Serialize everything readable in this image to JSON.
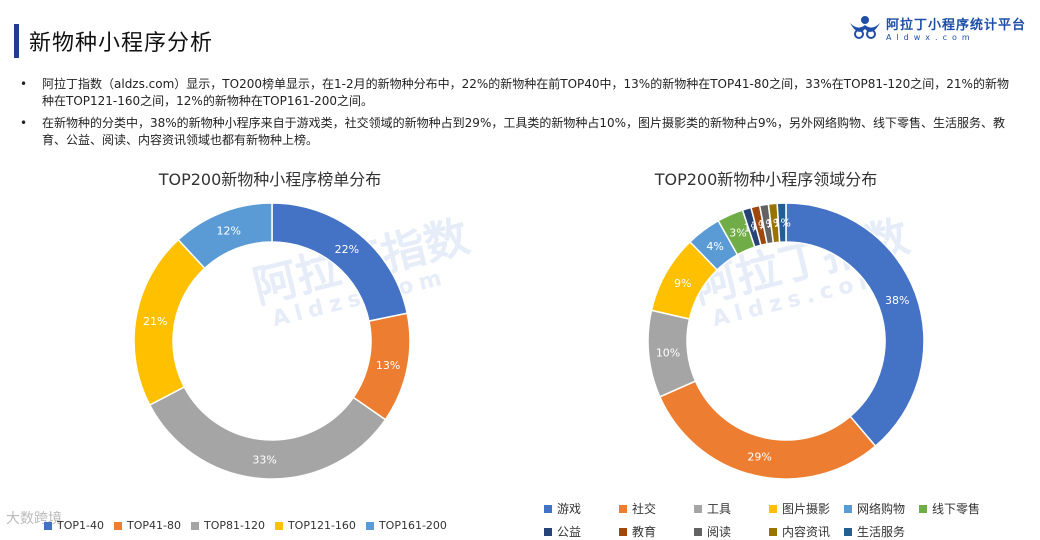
{
  "header": {
    "title": "新物种小程序分析",
    "logo_text": "阿拉丁小程序统计平台",
    "logo_sub": "Aldwx.com"
  },
  "bullets": [
    "阿拉丁指数（aldzs.com）显示，TO200榜单显示，在1-2月的新物种分布中，22%的新物种在前TOP40中，13%的新物种在TOP41-80之间，33%在TOP81-120之间，21%的新物种在TOP121-160之间，12%的新物种在TOP161-200之间。",
    "在新物种的分类中，38%的新物种小程序来自于游戏类，社交领域的新物种占到29%，工具类的新物种占10%，图片摄影类的新物种占9%，另外网络购物、线下零售、生活服务、教育、公益、阅读、内容资讯领域也都有新物种上榜。"
  ],
  "watermark": {
    "cn": "阿拉丁指数",
    "en": "Aldzs.com",
    "corner": "大数跨境"
  },
  "chart_data": [
    {
      "type": "pie",
      "title": "TOP200新物种小程序榜单分布",
      "categories": [
        "TOP1-40",
        "TOP41-80",
        "TOP81-120",
        "TOP121-160",
        "TOP161-200"
      ],
      "values": [
        22,
        13,
        33,
        21,
        12
      ],
      "labels": [
        "22%",
        "13%",
        "33%",
        "21%",
        "12%"
      ],
      "colors": [
        "#4472c4",
        "#ed7d31",
        "#a5a5a5",
        "#ffc000",
        "#5b9bd5"
      ],
      "legend": "bottom"
    },
    {
      "type": "pie",
      "title": "TOP200新物种小程序领域分布",
      "categories": [
        "游戏",
        "社交",
        "工具",
        "图片摄影",
        "网络购物",
        "线下零售",
        "公益",
        "教育",
        "阅读",
        "内容资讯",
        "生活服务"
      ],
      "values": [
        38,
        29,
        10,
        9,
        4,
        3,
        1,
        1,
        1,
        1,
        1
      ],
      "labels": [
        "38%",
        "29%",
        "10%",
        "9%",
        "4%",
        "3%",
        "1%",
        "1%",
        "1%",
        "1%",
        "1%"
      ],
      "colors": [
        "#4472c4",
        "#ed7d31",
        "#a5a5a5",
        "#ffc000",
        "#5b9bd5",
        "#70ad47",
        "#264478",
        "#9e480e",
        "#636363",
        "#997300",
        "#255e91"
      ],
      "legend": "bottom"
    }
  ]
}
